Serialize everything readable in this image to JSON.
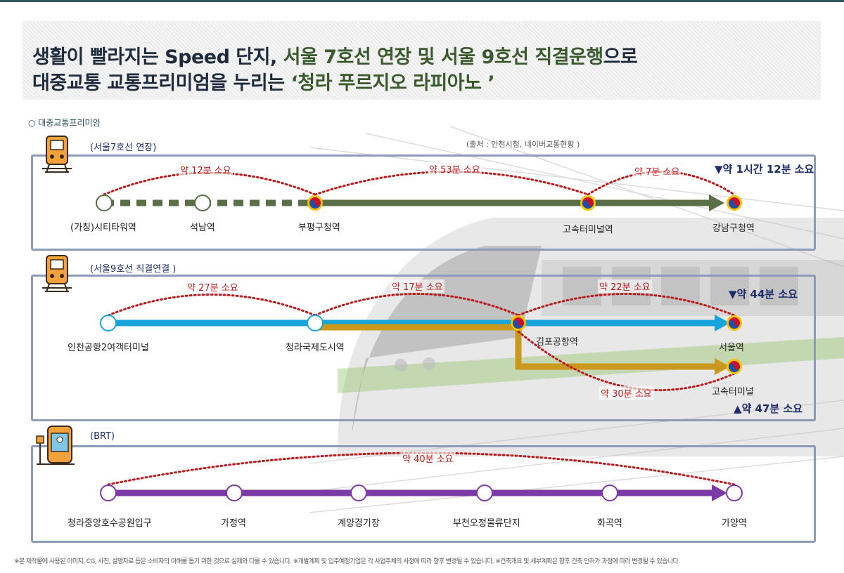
{
  "header": {
    "line1_part1": "생활이 빨라지는 Speed 단지, ",
    "line1_part2": "서울 7호선 연장 및 서울 9호선 직결운행",
    "line1_part3": "으로",
    "line2_part1": "대중교통 교통프리미엄을 누리는 ",
    "line2_part2": "‘청라 푸르지오 라피아노 ’"
  },
  "section_title": "○  대중교통프리미엄",
  "source": "(출처 : 인천시청, 네이버교통현황 )",
  "line7": {
    "name": "(서울7호선 연장)",
    "stations": [
      "(가칭)시티타워역",
      "석남역",
      "부평구청역",
      "고속터미널역",
      "강남구청역"
    ],
    "durations": [
      "약 12분 소요",
      "약 53분 소요",
      "약 7분 소요"
    ],
    "total": "▼약 1시간 12분 소요",
    "color": "#5a6e47"
  },
  "line9": {
    "name": "(서울9호선 직결연결 )",
    "stations": [
      "인천공항2여객터미널",
      "청라국제도시역",
      "김포공항역",
      "서울역",
      "고속터미널"
    ],
    "durations": [
      "약 27분 소요",
      "약 17분 소요",
      "약 22분 소요",
      "약 30분 소요"
    ],
    "total_top": "▼약 44분 소요",
    "total_bottom": "▲약 47분 소요",
    "color_airport": "#17a4dc",
    "color_line9": "#c9981d"
  },
  "brt": {
    "name": "(BRT)",
    "stations": [
      "청라중앙호수공원입구",
      "가정역",
      "계양경기장",
      "부천오정물류단지",
      "화곡역",
      "가양역"
    ],
    "duration": "약 40분 소요",
    "color": "#7b3aa5"
  },
  "icons": [
    "train-icon",
    "train-icon",
    "bus-stop-icon",
    "taegeuk-icon"
  ],
  "colors": {
    "duration": "#b81c1c",
    "frame": "#8c9bb8",
    "accent": "#3a5a2e"
  },
  "footer": "※본 제작물에 사용된 이미지, CG, 사진, 설명자료 등은 소비자의 이해를 돕기 위한 것으로 실제와 다를 수 있습니다.   ※개발계획 및 입주예정기업은 각 사업주체의 사정에 따라 향후 변경될 수 있습니다.   ※건축개요 및 세부계획은 향후 건축 인허가 과정에 따라 변경될 수 있습니다."
}
